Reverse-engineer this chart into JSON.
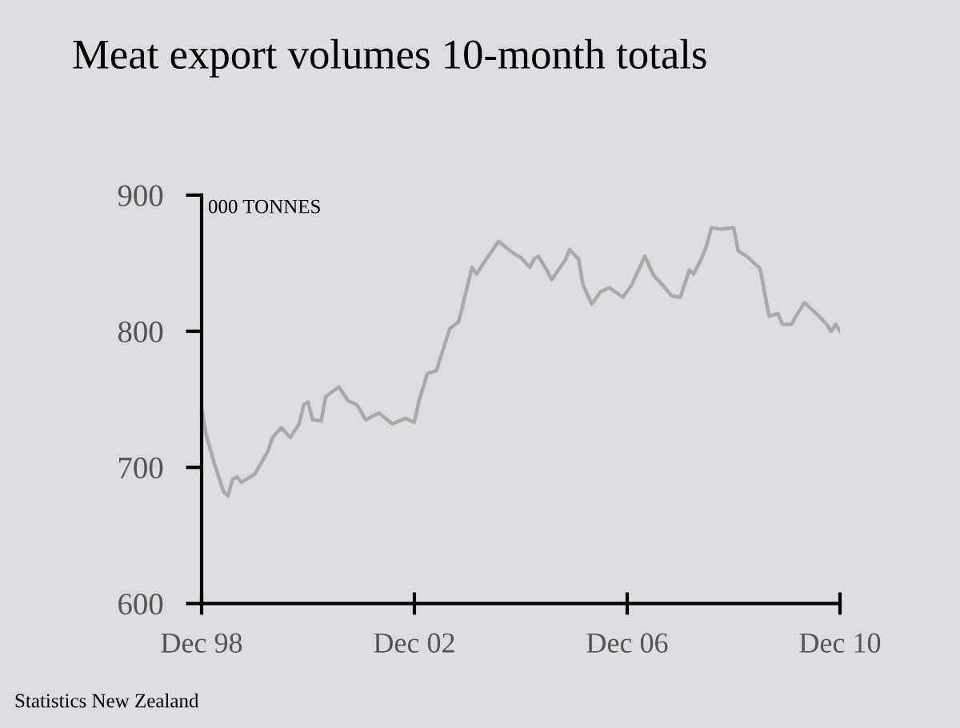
{
  "chart_data": {
    "type": "line",
    "title": "Meat export volumes 10-month totals",
    "ylabel": "000 TONNES",
    "annotations": [
      "Statistics New Zealand"
    ],
    "x": [
      "1998-12",
      "1999-01",
      "1999-03",
      "1999-05",
      "1999-06",
      "1999-07",
      "1999-08",
      "1999-09",
      "1999-12",
      "2000-03",
      "2000-04",
      "2000-06",
      "2000-08",
      "2000-10",
      "2000-11",
      "2000-12",
      "2001-01",
      "2001-03",
      "2001-04",
      "2001-07",
      "2001-09",
      "2001-11",
      "2002-01",
      "2002-04",
      "2002-07",
      "2002-10",
      "2002-12",
      "2003-01",
      "2003-03",
      "2003-05",
      "2003-08",
      "2003-10",
      "2004-01",
      "2004-02",
      "2004-04",
      "2004-07",
      "2004-10",
      "2004-12",
      "2005-02",
      "2005-03",
      "2005-04",
      "2005-06",
      "2005-07",
      "2005-10",
      "2005-11",
      "2006-01",
      "2006-02",
      "2006-04",
      "2006-06",
      "2006-08",
      "2006-11",
      "2007-01",
      "2007-04",
      "2007-06",
      "2007-08",
      "2007-10",
      "2007-12",
      "2008-02",
      "2008-03",
      "2008-05",
      "2008-06",
      "2008-07",
      "2008-09",
      "2008-12",
      "2009-01",
      "2009-03",
      "2009-06",
      "2009-08",
      "2009-10",
      "2009-11",
      "2010-01",
      "2010-02",
      "2010-04",
      "2010-07",
      "2010-09",
      "2010-10",
      "2010-11",
      "2010-12"
    ],
    "series": [
      {
        "color": "#aaaaaa",
        "values": [
          744,
          724,
          702,
          682,
          679,
          691,
          693,
          689,
          695,
          712,
          722,
          729,
          722,
          732,
          746,
          748,
          735,
          734,
          752,
          759,
          749,
          746,
          735,
          740,
          732,
          736,
          733,
          749,
          769,
          771,
          802,
          807,
          847,
          842,
          852,
          866,
          858,
          854,
          847,
          853,
          855,
          844,
          838,
          852,
          860,
          853,
          834,
          820,
          829,
          832,
          825,
          834,
          855,
          841,
          834,
          826,
          825,
          845,
          842,
          855,
          864,
          876,
          875,
          876,
          859,
          855,
          846,
          811,
          813,
          805,
          805,
          811,
          821,
          812,
          805,
          800,
          805,
          800
        ]
      }
    ],
    "xlim": [
      "1998-12",
      "2010-12"
    ],
    "xticks": [
      {
        "value": "1998-12",
        "label": "Dec 98"
      },
      {
        "value": "2002-12",
        "label": "Dec 02"
      },
      {
        "value": "2006-12",
        "label": "Dec 06"
      },
      {
        "value": "2010-12",
        "label": "Dec 10"
      }
    ],
    "ylim": [
      600,
      900
    ],
    "yticks": [
      600,
      700,
      800,
      900
    ],
    "grid": false,
    "legend": false,
    "marker": "none",
    "line_style": "solid"
  }
}
